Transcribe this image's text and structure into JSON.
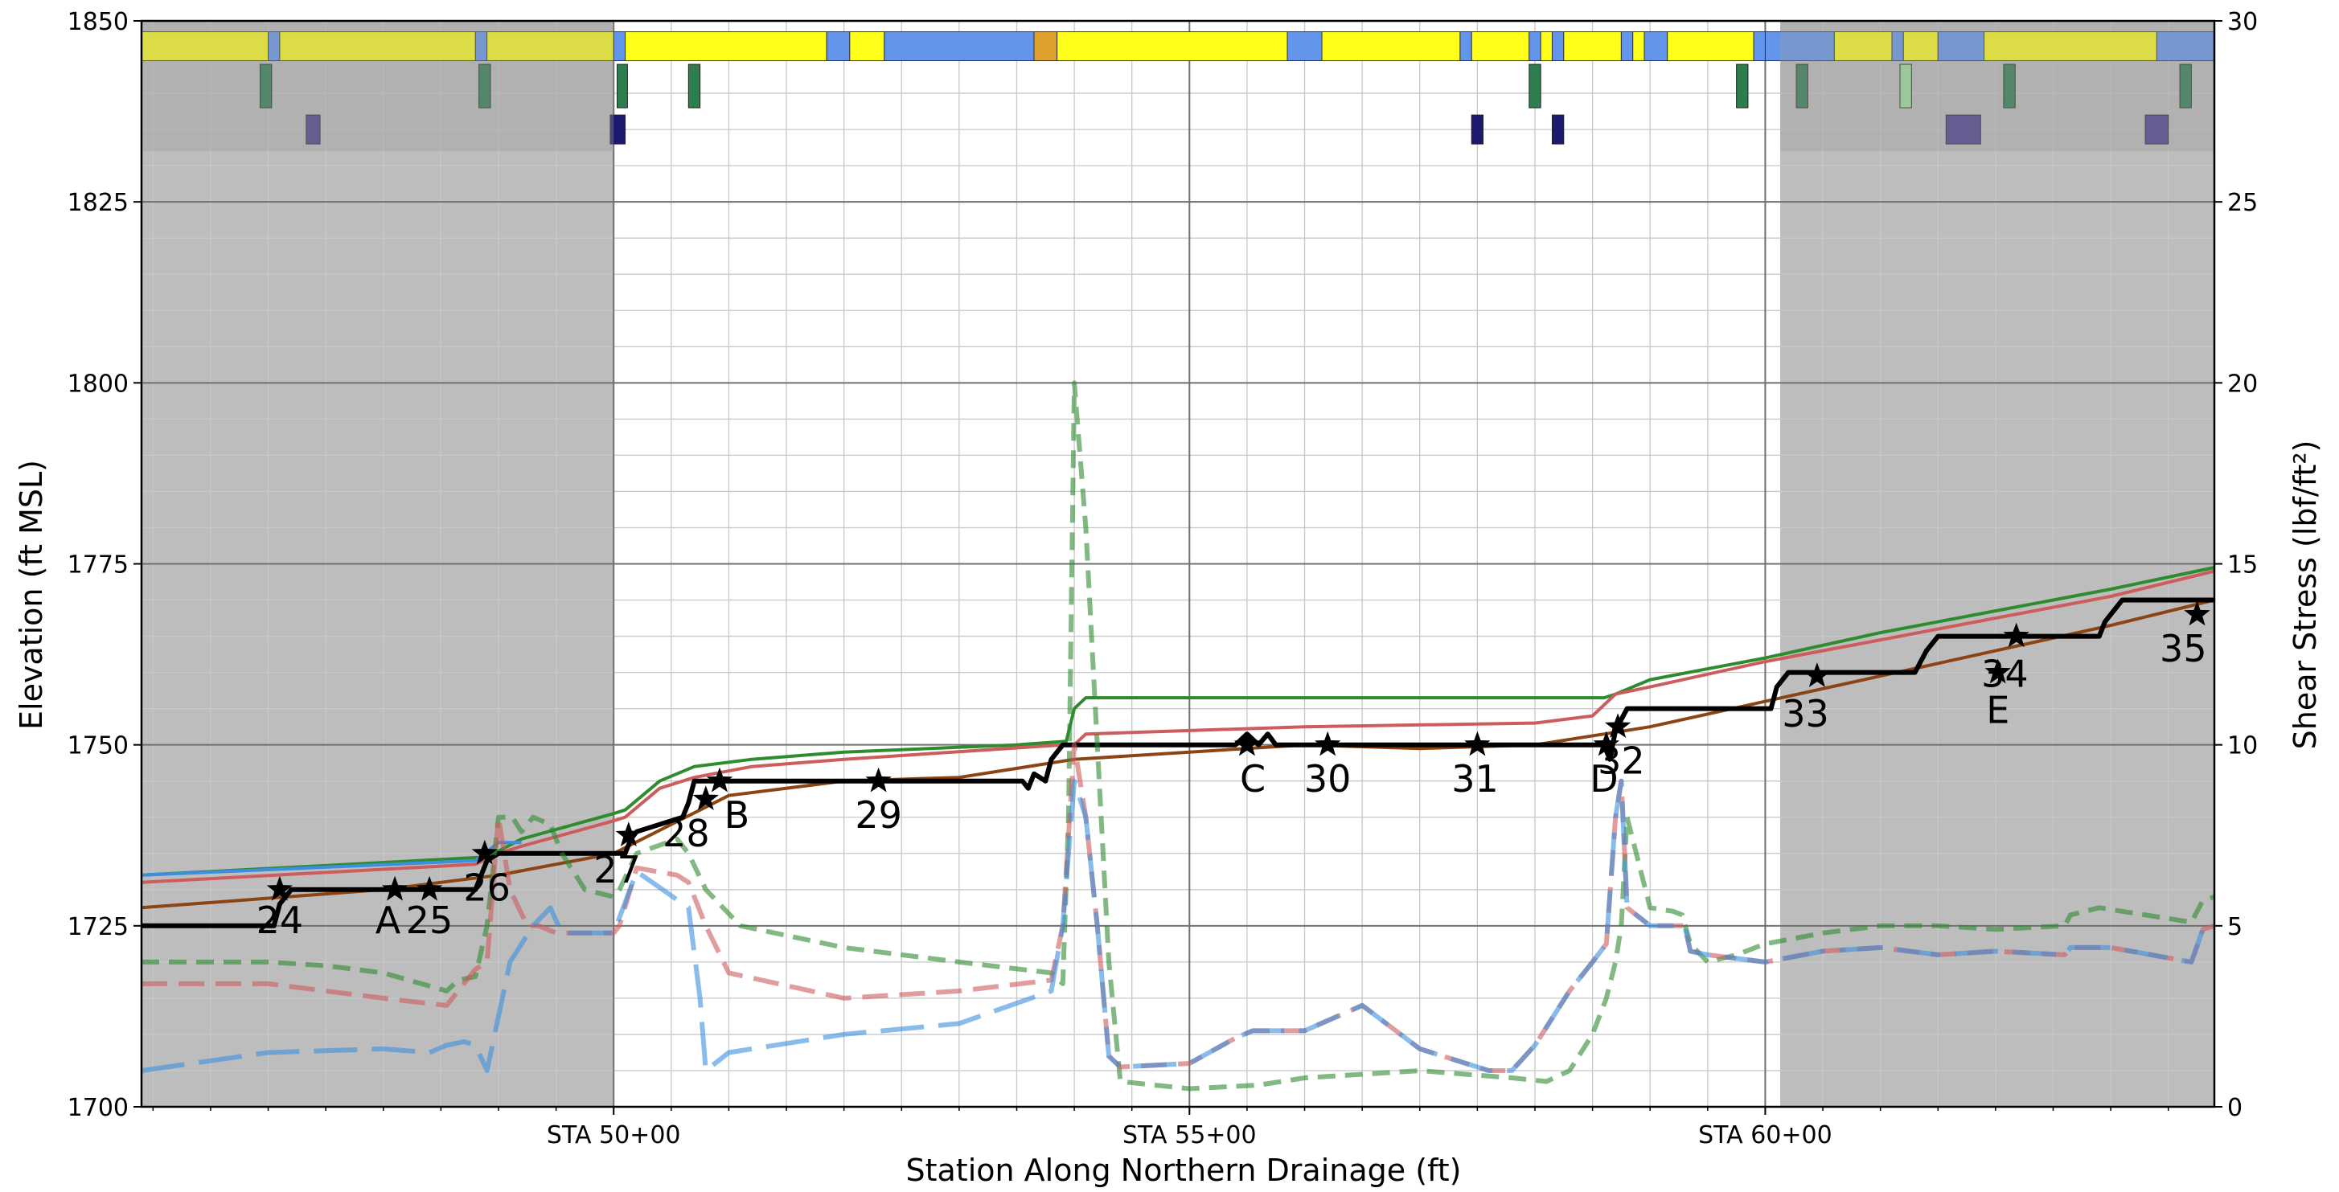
{
  "chart_data": {
    "type": "line",
    "xlabel": "Station Along Northern Drainage (ft)",
    "ylabel": "Elevation (ft MSL)",
    "y2label": "Shear Stress (lbf/ft²)",
    "xlim": [
      4590,
      6390
    ],
    "ylim": [
      1700,
      1850
    ],
    "y2lim": [
      0,
      30
    ],
    "x_ticks": [
      {
        "x": 5000,
        "label": "STA 50+00"
      },
      {
        "x": 5500,
        "label": "STA 55+00"
      },
      {
        "x": 6000,
        "label": "STA 60+00"
      }
    ],
    "y_ticks": [
      1700,
      1725,
      1750,
      1775,
      1800,
      1825,
      1850
    ],
    "y2_ticks": [
      0,
      5,
      10,
      15,
      20,
      25,
      30
    ],
    "grid": true,
    "shaded_regions": [
      [
        4590,
        5000
      ],
      [
        6013,
        6390
      ]
    ],
    "colors": {
      "green": "#2e8b2e",
      "red": "#cd5c5c",
      "brown": "#8b4513",
      "blue": "#3b8fde",
      "black": "#000000",
      "gray": "#bdbdbd",
      "yellow": "#ffff1a",
      "seg_blue": "#6495ed",
      "seg_orange": "#e0a030"
    },
    "series": [
      {
        "axis": "elev",
        "style": "solid",
        "color": "green",
        "x": [
          4590,
          4890,
          4920,
          5000,
          5010,
          5040,
          5070,
          5120,
          5200,
          5350,
          5393,
          5400,
          5410,
          5600,
          5800,
          5860,
          5870,
          5900,
          6000,
          6100,
          6200,
          6300,
          6390
        ],
        "y": [
          1732,
          1734.5,
          1737,
          1740.5,
          1741,
          1745,
          1747,
          1748,
          1749,
          1750,
          1750.5,
          1755,
          1756.5,
          1756.5,
          1756.5,
          1756.5,
          1757,
          1759,
          1762,
          1765.5,
          1768.5,
          1771.5,
          1774.5
        ]
      },
      {
        "axis": "elev",
        "style": "solid",
        "color": "red",
        "x": [
          4590,
          4880,
          4900,
          4920,
          5000,
          5010,
          5040,
          5070,
          5120,
          5200,
          5390,
          5400,
          5410,
          5600,
          5800,
          5850,
          5870,
          5900,
          6000,
          6100,
          6200,
          6300,
          6390
        ],
        "y": [
          1731,
          1733.5,
          1735,
          1736,
          1739.5,
          1740,
          1744,
          1745.5,
          1747,
          1748,
          1750,
          1750,
          1751.5,
          1752.5,
          1753,
          1754,
          1757,
          1758,
          1761.5,
          1764.5,
          1767.5,
          1770.5,
          1774
        ]
      },
      {
        "axis": "elev",
        "style": "solid",
        "color": "brown",
        "x": [
          4590,
          4800,
          4900,
          5000,
          5100,
          5200,
          5300,
          5400,
          5500,
          5600,
          5700,
          5800,
          5900,
          6000,
          6100,
          6200,
          6300,
          6390
        ],
        "y": [
          1727.5,
          1730,
          1732,
          1735,
          1743,
          1745,
          1745.5,
          1748,
          1749,
          1750,
          1749.5,
          1750,
          1752.5,
          1756,
          1759.5,
          1763,
          1766.5,
          1770
        ]
      },
      {
        "axis": "elev",
        "style": "solid",
        "color": "blue",
        "x": [
          4590,
          4880,
          4900,
          4920
        ],
        "y": [
          1732,
          1734,
          1736.5,
          1736.5
        ]
      },
      {
        "axis": "elev",
        "style": "solid",
        "color": "black",
        "x": [
          4590,
          4705,
          4710,
          4720,
          4840,
          4880,
          4885,
          4890,
          4900,
          5010,
          5015,
          5020,
          5060,
          5065,
          5070,
          5085,
          5240,
          5355,
          5360,
          5365,
          5375,
          5380,
          5390,
          5400,
          5410,
          5540,
          5550,
          5560,
          5568,
          5575,
          5590,
          5610,
          5860,
          5865,
          5870,
          5880,
          6005,
          6010,
          6020,
          6130,
          6140,
          6150,
          6290,
          6295,
          6310,
          6390
        ],
        "y": [
          1725,
          1725,
          1728,
          1730,
          1730,
          1730,
          1732,
          1734,
          1735,
          1735,
          1737,
          1738,
          1740,
          1742,
          1745,
          1745,
          1745,
          1745,
          1744,
          1746,
          1745,
          1748,
          1750,
          1750,
          1750,
          1750,
          1751.5,
          1750,
          1751.5,
          1750,
          1750,
          1750,
          1750,
          1748,
          1752,
          1755,
          1755,
          1758,
          1760,
          1760,
          1763,
          1765,
          1765,
          1767,
          1770,
          1770
        ]
      },
      {
        "axis": "shear",
        "style": "dashed",
        "color": "green",
        "x": [
          4590,
          4700,
          4750,
          4800,
          4855,
          4865,
          4880,
          4890,
          4900,
          4912,
          4920,
          4930,
          4945,
          4955,
          4975,
          5000,
          5005,
          5020,
          5055,
          5065,
          5080,
          5110,
          5200,
          5300,
          5380,
          5390,
          5395,
          5400,
          5410,
          5420,
          5430,
          5440,
          5500,
          5560,
          5600,
          5700,
          5780,
          5810,
          5830,
          5850,
          5862,
          5870,
          5875,
          5880,
          5900,
          5920,
          5928,
          5935,
          5950,
          5975,
          6000,
          6050,
          6100,
          6150,
          6200,
          6260,
          6265,
          6290,
          6330,
          6370,
          6380,
          6390
        ],
        "y": [
          4,
          4,
          3.9,
          3.7,
          3.2,
          3.5,
          3.6,
          5,
          8,
          8,
          7.6,
          8,
          7.8,
          7,
          6,
          5.8,
          6,
          7,
          7.4,
          7,
          6,
          5,
          4.4,
          4,
          3.7,
          3.4,
          8,
          20,
          16,
          10,
          4,
          0.7,
          0.5,
          0.6,
          0.8,
          1,
          0.8,
          0.7,
          1,
          2,
          3,
          4,
          5,
          8,
          5.5,
          5.4,
          5.3,
          4.5,
          4,
          4.2,
          4.5,
          4.8,
          5,
          5,
          4.9,
          5,
          5.3,
          5.5,
          5.3,
          5.1,
          5.7,
          5.8
        ]
      },
      {
        "axis": "shear",
        "style": "dashed",
        "color": "red",
        "x": [
          4590,
          4700,
          4750,
          4800,
          4855,
          4880,
          4890,
          4900,
          4910,
          4925,
          4935,
          4950,
          4960,
          4975,
          5000,
          5005,
          5020,
          5055,
          5065,
          5080,
          5100,
          5200,
          5300,
          5380,
          5390,
          5400,
          5410,
          5420,
          5430,
          5440,
          5500,
          5540,
          5555,
          5600,
          5650,
          5700,
          5760,
          5780,
          5800,
          5830,
          5850,
          5862,
          5870,
          5875,
          5880,
          5900,
          5930,
          5935,
          5950,
          6000,
          6050,
          6100,
          6150,
          6200,
          6260,
          6265,
          6300,
          6370,
          6380,
          6390
        ],
        "y": [
          3.4,
          3.4,
          3.2,
          3,
          2.8,
          3.8,
          4,
          8,
          6,
          5,
          5,
          4.8,
          4.8,
          4.8,
          4.8,
          5,
          6.6,
          6.4,
          6.2,
          5,
          3.7,
          3,
          3.2,
          3.5,
          5,
          10,
          8,
          5,
          1.4,
          1.1,
          1.2,
          1.9,
          2.1,
          2.1,
          2.8,
          1.6,
          1,
          1,
          1.7,
          3.2,
          4,
          4.5,
          8,
          9,
          5.5,
          5,
          5,
          4.3,
          4.2,
          4,
          4.3,
          4.4,
          4.2,
          4.3,
          4.2,
          4.4,
          4.4,
          4,
          4.9,
          5
        ]
      },
      {
        "axis": "shear",
        "style": "dashed",
        "color": "blue",
        "x": [
          4590,
          4700,
          4800,
          4840,
          4855,
          4870,
          4880,
          4890,
          4900,
          4910,
          4930,
          4945,
          4955,
          4970,
          5000,
          5020,
          5065,
          5075,
          5080,
          5100,
          5200,
          5300,
          5380,
          5390,
          5400,
          5410,
          5420,
          5430,
          5440,
          5500,
          5540,
          5555,
          5600,
          5650,
          5700,
          5760,
          5780,
          5800,
          5830,
          5850,
          5862,
          5870,
          5875,
          5880,
          5900,
          5930,
          5935,
          5950,
          6000,
          6050,
          6100,
          6150,
          6200,
          6260,
          6265,
          6300,
          6370,
          6380,
          6390
        ],
        "y": [
          1,
          1.5,
          1.6,
          1.5,
          1.7,
          1.8,
          1.7,
          1,
          2.5,
          4,
          5,
          5.5,
          4.8,
          4.8,
          4.8,
          6.5,
          5.5,
          3,
          1,
          1.5,
          2,
          2.3,
          3.2,
          5,
          9,
          8,
          5,
          1.4,
          1.1,
          1.2,
          1.9,
          2.1,
          2.1,
          2.8,
          1.6,
          1,
          1,
          1.7,
          3.2,
          4,
          4.5,
          8,
          9,
          5.5,
          5,
          5,
          4.3,
          4.2,
          4,
          4.3,
          4.4,
          4.2,
          4.3,
          4.2,
          4.4,
          4.4,
          4,
          4.9,
          5
        ]
      }
    ],
    "stars": [
      {
        "x": 4710,
        "y": 1730,
        "label": "24",
        "lx": 4710,
        "ly": 1724
      },
      {
        "x": 4810,
        "y": 1730,
        "label": "A",
        "lx": 4804,
        "ly": 1724
      },
      {
        "x": 4840,
        "y": 1730,
        "label": "25",
        "lx": 4840,
        "ly": 1724
      },
      {
        "x": 4888,
        "y": 1735,
        "label": "26",
        "lx": 4890,
        "ly": 1728.5
      },
      {
        "x": 5013,
        "y": 1737.5,
        "label": "27",
        "lx": 5003,
        "ly": 1731
      },
      {
        "x": 5080,
        "y": 1742.5,
        "label": "28",
        "lx": 5063,
        "ly": 1736
      },
      {
        "x": 5092,
        "y": 1745,
        "label": "B",
        "lx": 5107,
        "ly": 1738.5
      },
      {
        "x": 5230,
        "y": 1745,
        "label": "29",
        "lx": 5230,
        "ly": 1738.5
      },
      {
        "x": 5550,
        "y": 1750,
        "label": "C",
        "lx": 5555,
        "ly": 1743.5
      },
      {
        "x": 5620,
        "y": 1750,
        "label": "30",
        "lx": 5620,
        "ly": 1743.5
      },
      {
        "x": 5750,
        "y": 1750,
        "label": "31",
        "lx": 5748,
        "ly": 1743.5
      },
      {
        "x": 5862,
        "y": 1750,
        "label": "D",
        "lx": 5860,
        "ly": 1743.5
      },
      {
        "x": 5872,
        "y": 1752.5,
        "label": "32",
        "lx": 5875,
        "ly": 1746
      },
      {
        "x": 6045,
        "y": 1759.5,
        "label": "33",
        "lx": 6035,
        "ly": 1752.5
      },
      {
        "x": 6202,
        "y": 1760,
        "label": "E",
        "lx": 6202,
        "ly": 1753
      },
      {
        "x": 6218,
        "y": 1765,
        "label": "34",
        "lx": 6208,
        "ly": 1758
      },
      {
        "x": 6375,
        "y": 1768,
        "label": "35",
        "lx": 6363,
        "ly": 1761.5
      }
    ],
    "top_strip": [
      [
        4590,
        4700,
        "yellow"
      ],
      [
        4700,
        4710,
        "seg_blue"
      ],
      [
        4710,
        4880,
        "yellow"
      ],
      [
        4880,
        4890,
        "seg_blue"
      ],
      [
        4890,
        5000,
        "yellow"
      ],
      [
        5000,
        5010,
        "seg_blue"
      ],
      [
        5010,
        5185,
        "yellow"
      ],
      [
        5185,
        5205,
        "seg_blue"
      ],
      [
        5205,
        5235,
        "yellow"
      ],
      [
        5235,
        5365,
        "seg_blue"
      ],
      [
        5365,
        5385,
        "seg_orange"
      ],
      [
        5385,
        5585,
        "yellow"
      ],
      [
        5585,
        5615,
        "seg_blue"
      ],
      [
        5615,
        5735,
        "yellow"
      ],
      [
        5735,
        5745,
        "seg_blue"
      ],
      [
        5745,
        5795,
        "yellow"
      ],
      [
        5795,
        5805,
        "seg_blue"
      ],
      [
        5805,
        5815,
        "yellow"
      ],
      [
        5815,
        5825,
        "seg_blue"
      ],
      [
        5825,
        5875,
        "yellow"
      ],
      [
        5875,
        5885,
        "seg_blue"
      ],
      [
        5885,
        5895,
        "yellow"
      ],
      [
        5895,
        5915,
        "seg_blue"
      ],
      [
        5915,
        5990,
        "yellow"
      ],
      [
        5990,
        6000,
        "seg_blue"
      ],
      [
        6000,
        6060,
        "seg_blue"
      ],
      [
        6060,
        6110,
        "yellow"
      ],
      [
        6110,
        6120,
        "seg_blue"
      ],
      [
        6120,
        6150,
        "yellow"
      ],
      [
        6150,
        6190,
        "seg_blue"
      ],
      [
        6190,
        6340,
        "yellow"
      ],
      [
        6340,
        6390,
        "seg_blue"
      ]
    ],
    "markers": [
      [
        4693,
        4703,
        1844,
        1838,
        "#2e7d4f"
      ],
      [
        4883,
        4893,
        1844,
        1838,
        "#2e7d4f"
      ],
      [
        4733,
        4745,
        1837,
        1833,
        "#4b3d8f"
      ],
      [
        4997,
        5010,
        1837,
        1833,
        "#1c1a6e"
      ],
      [
        5003,
        5012,
        1844,
        1838,
        "#2e7d4f"
      ],
      [
        5065,
        5075,
        1844,
        1838,
        "#2e7d4f"
      ],
      [
        5745,
        5755,
        1837,
        1833,
        "#1c1a6e"
      ],
      [
        5815,
        5825,
        1837,
        1833,
        "#1c1a6e"
      ],
      [
        5795,
        5805,
        1844,
        1838,
        "#2e7d4f"
      ],
      [
        5975,
        5985,
        1844,
        1838,
        "#2e7d4f"
      ],
      [
        6027,
        6037,
        1844,
        1838,
        "#2e7d4f"
      ],
      [
        6117,
        6127,
        1844,
        1838,
        "#9be09b"
      ],
      [
        6207,
        6217,
        1844,
        1838,
        "#2e7d4f"
      ],
      [
        6360,
        6370,
        1844,
        1838,
        "#2e7d4f"
      ],
      [
        6157,
        6187,
        1837,
        1833,
        "#4b3d8f"
      ],
      [
        6330,
        6350,
        1837,
        1833,
        "#4b3d8f"
      ]
    ]
  }
}
